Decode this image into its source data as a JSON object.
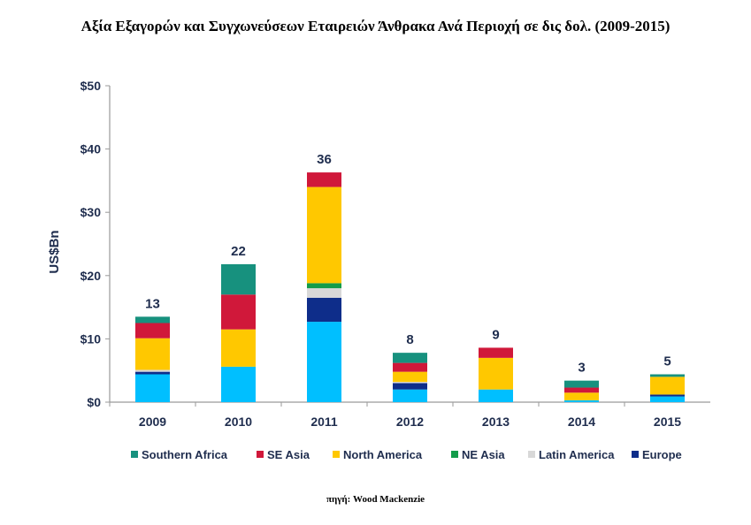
{
  "page": {
    "title": "Αξία Εξαγορών και Συγχωνεύσεων Εταιρειών Άνθρακα Ανά Περιοχή σε δις δολ. (2009-2015)",
    "source": "πηγή: Wood Mackenzie"
  },
  "chart_data": {
    "type": "bar",
    "stacked": true,
    "title": "Αξία Εξαγορών και Συγχωνεύσεων Εταιρειών Άνθρακα Ανά Περιοχή σε δις δολ. (2009-2015)",
    "xlabel": "",
    "ylabel": "US$Bn",
    "ylim": [
      0,
      50
    ],
    "yticks": [
      0,
      10,
      20,
      30,
      40,
      50
    ],
    "ytick_labels": [
      "$0",
      "$10",
      "$20",
      "$30",
      "$40",
      "$50"
    ],
    "grid": false,
    "legend_position": "bottom",
    "categories": [
      "2009",
      "2010",
      "2011",
      "2012",
      "2013",
      "2014",
      "2015"
    ],
    "totals": [
      "13",
      "22",
      "36",
      "8",
      "9",
      "3",
      "5"
    ],
    "series": [
      {
        "name": "Unlabeled (light blue)",
        "legend": false,
        "color": "#00bfff",
        "values": [
          4.4,
          5.6,
          12.7,
          2.0,
          2.0,
          0.3,
          0.9
        ]
      },
      {
        "name": "Europe",
        "legend": true,
        "color": "#0e2d8a",
        "values": [
          0.4,
          0.0,
          3.8,
          1.0,
          0.0,
          0.0,
          0.3
        ]
      },
      {
        "name": "Latin America",
        "legend": true,
        "color": "#d8d8d8",
        "values": [
          0.3,
          0.0,
          1.5,
          0.2,
          0.0,
          0.0,
          0.0
        ]
      },
      {
        "name": "NE Asia",
        "legend": true,
        "color": "#139c4a",
        "values": [
          0.0,
          0.0,
          0.8,
          0.0,
          0.0,
          0.0,
          0.0
        ]
      },
      {
        "name": "North America",
        "legend": true,
        "color": "#ffc800",
        "values": [
          5.0,
          5.9,
          15.2,
          1.6,
          5.0,
          1.2,
          2.8
        ]
      },
      {
        "name": "SE Asia",
        "legend": true,
        "color": "#d0183a",
        "values": [
          2.4,
          5.5,
          2.3,
          1.4,
          1.6,
          0.8,
          0.0
        ]
      },
      {
        "name": "Southern Africa",
        "legend": true,
        "color": "#17917e",
        "values": [
          1.0,
          4.8,
          0.0,
          1.6,
          0.0,
          1.1,
          0.4
        ]
      }
    ],
    "legend_order": [
      "Southern Africa",
      "SE Asia",
      "North America",
      "NE Asia",
      "Latin America",
      "Europe"
    ]
  }
}
